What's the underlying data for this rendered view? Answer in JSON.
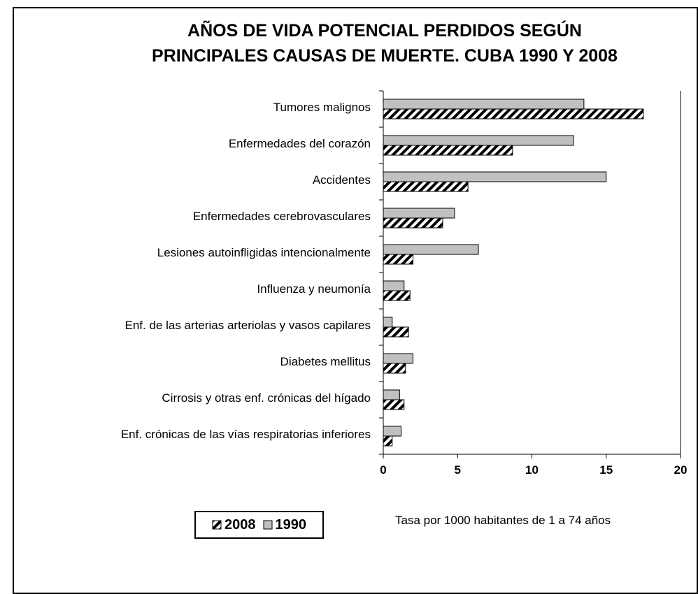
{
  "chart_data": {
    "type": "barh",
    "title": [
      "AÑOS DE VIDA POTENCIAL PERDIDOS SEGÚN",
      "PRINCIPALES CAUSAS DE MUERTE. CUBA 1990 Y 2008"
    ],
    "categories": [
      "Tumores malignos",
      "Enfermedades del corazón",
      "Accidentes",
      "Enfermedades cerebrovasculares",
      "Lesiones autoinfligidas intencionalmente",
      "Influenza y neumonía",
      "Enf. de las arterias arteriolas y vasos capilares",
      "Diabetes mellitus",
      "Cirrosis y otras enf. crónicas del hígado",
      "Enf. crónicas de las vías respiratorias inferiores"
    ],
    "series": [
      {
        "name": "1990",
        "color": "#c0c0c0",
        "values": [
          13.5,
          12.8,
          15.0,
          4.8,
          6.4,
          1.4,
          0.6,
          2.0,
          1.1,
          1.2
        ]
      },
      {
        "name": "2008",
        "color": "hatch",
        "values": [
          17.5,
          8.7,
          5.7,
          4.0,
          2.0,
          1.8,
          1.7,
          1.5,
          1.4,
          0.6
        ]
      }
    ],
    "legend_order": [
      1,
      0
    ],
    "x_label": "Tasa por 1000 habitantes de 1 a 74 años",
    "xlim": [
      0,
      20
    ],
    "xticks": [
      0,
      5,
      10,
      15,
      20
    ]
  }
}
